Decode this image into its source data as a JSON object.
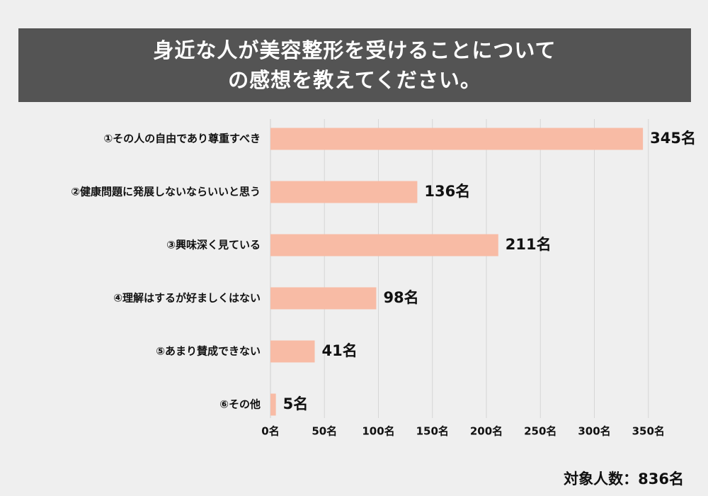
{
  "header": {
    "title_line1": "身近な人が美容整形を受けることについて",
    "title_line2": "の感想を教えてください。"
  },
  "chart_data": {
    "type": "bar",
    "orientation": "horizontal",
    "categories": [
      "①その人の自由であり尊重すべき",
      "②健康問題に発展しないならいいと思う",
      "③興味深く見ている",
      "④理解はするが好ましくはない",
      "⑤あまり賛成できない",
      "⑥その他"
    ],
    "values": [
      345,
      136,
      211,
      98,
      41,
      5
    ],
    "value_labels": [
      "345名",
      "136名",
      "211名",
      "98名",
      "41名",
      "5名"
    ],
    "xlim": [
      0,
      350
    ],
    "x_ticks": [
      0,
      50,
      100,
      150,
      200,
      250,
      300,
      350
    ],
    "x_tick_labels": [
      "0名",
      "50名",
      "100名",
      "150名",
      "200名",
      "250名",
      "300名",
      "350名"
    ],
    "grid": true,
    "bar_color": "#f8bba5",
    "grid_color": "#d6d6d6"
  },
  "footer": {
    "total_label": "対象人数：836名"
  }
}
